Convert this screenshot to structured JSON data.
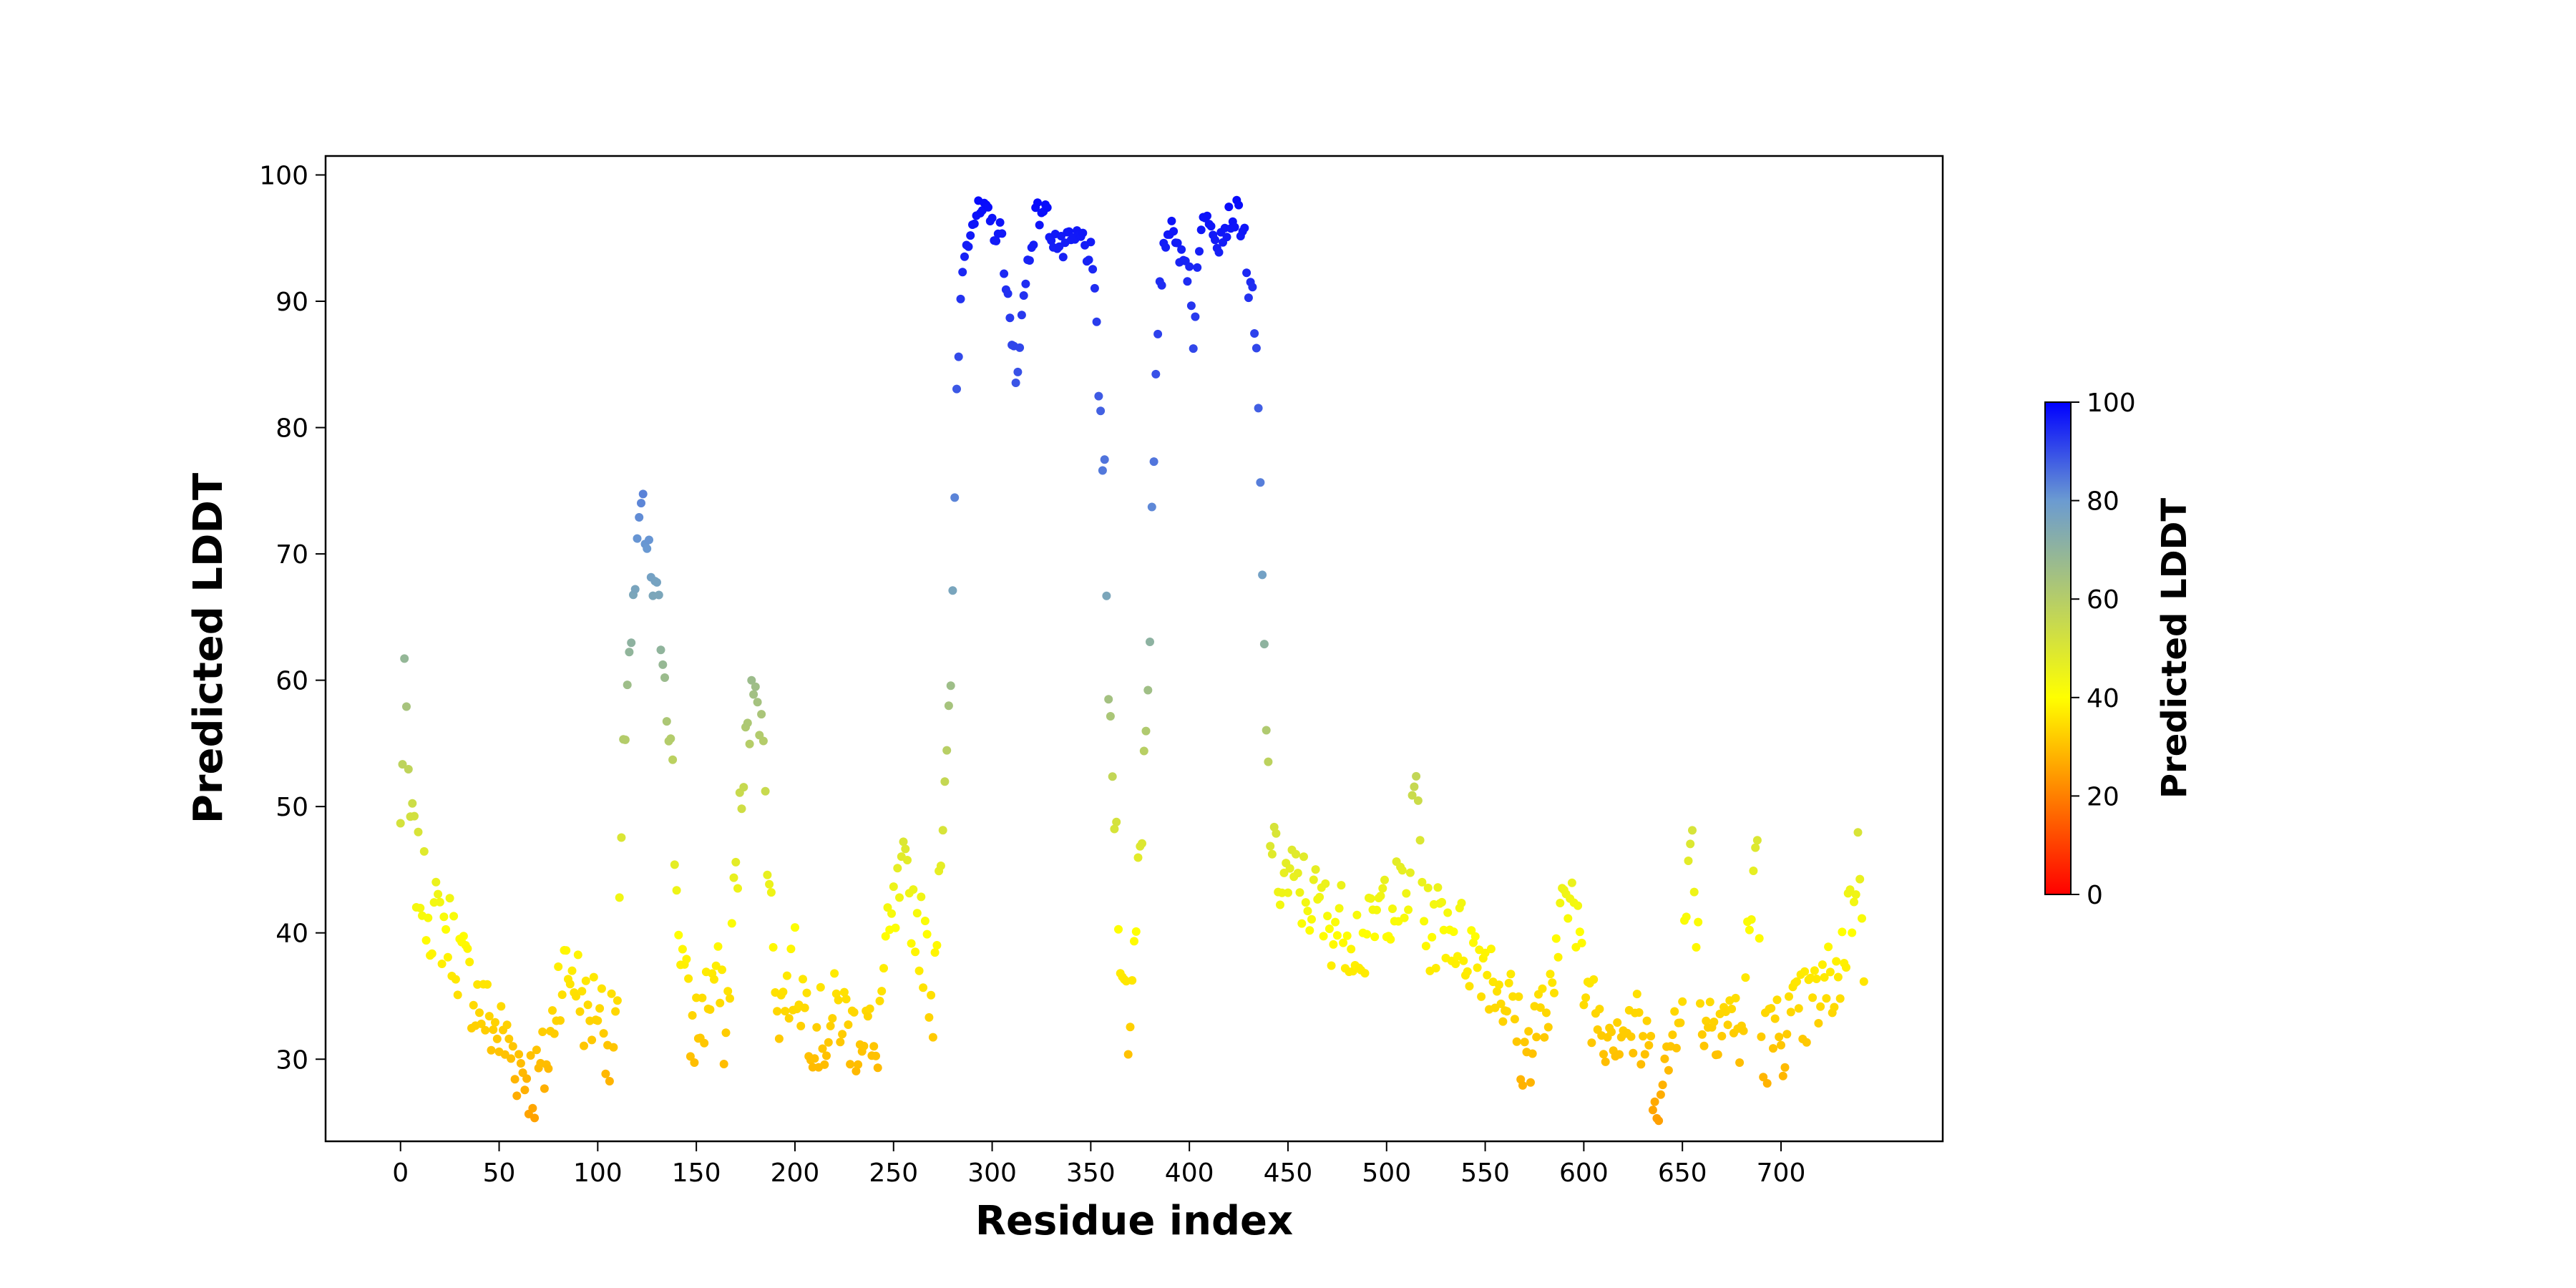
{
  "chart_data": {
    "type": "scatter",
    "xlabel": "Residue index",
    "ylabel": "Predicted LDDT",
    "xlim": [
      -38,
      782
    ],
    "ylim": [
      23.5,
      101.5
    ],
    "xticks": [
      "0",
      "50",
      "100",
      "150",
      "200",
      "250",
      "300",
      "350",
      "400",
      "450",
      "500",
      "550",
      "600",
      "650",
      "700"
    ],
    "yticks": [
      "30",
      "40",
      "50",
      "60",
      "70",
      "80",
      "90",
      "100"
    ],
    "colorbar": {
      "label": "Predicted LDDT",
      "range": [
        0,
        100
      ],
      "ticks": [
        "0",
        "20",
        "40",
        "60",
        "80",
        "100"
      ],
      "colormap": [
        "#ff0000",
        "#ffff00",
        "#6b9bd1",
        "#0000ff"
      ]
    },
    "grid": false,
    "legend": "none",
    "anchors": [
      [
        0,
        48
      ],
      [
        2,
        61.5
      ],
      [
        3,
        54.5
      ],
      [
        5,
        49
      ],
      [
        8,
        45
      ],
      [
        15,
        41.5
      ],
      [
        25,
        40
      ],
      [
        35,
        36
      ],
      [
        45,
        33
      ],
      [
        55,
        31
      ],
      [
        63,
        29
      ],
      [
        68,
        28
      ],
      [
        75,
        30
      ],
      [
        80,
        36.5
      ],
      [
        88,
        37
      ],
      [
        95,
        33
      ],
      [
        100,
        35
      ],
      [
        106,
        31
      ],
      [
        110,
        34
      ],
      [
        113,
        52
      ],
      [
        115,
        61
      ],
      [
        117,
        63.5
      ],
      [
        120,
        69
      ],
      [
        122,
        74
      ],
      [
        125,
        70
      ],
      [
        128,
        67.5
      ],
      [
        132,
        64
      ],
      [
        134,
        61
      ],
      [
        136,
        57
      ],
      [
        138,
        51.5
      ],
      [
        140,
        43
      ],
      [
        143,
        38
      ],
      [
        147,
        32
      ],
      [
        152,
        33
      ],
      [
        160,
        37
      ],
      [
        165,
        31.5
      ],
      [
        168,
        40
      ],
      [
        170,
        45
      ],
      [
        173,
        50
      ],
      [
        175,
        54
      ],
      [
        178,
        58
      ],
      [
        180,
        61.5
      ],
      [
        183,
        56
      ],
      [
        186,
        48
      ],
      [
        188,
        41
      ],
      [
        192,
        34
      ],
      [
        200,
        37
      ],
      [
        208,
        33
      ],
      [
        215,
        32
      ],
      [
        222,
        34
      ],
      [
        230,
        32
      ],
      [
        237,
        33
      ],
      [
        240,
        28.5
      ],
      [
        245,
        37
      ],
      [
        250,
        41
      ],
      [
        255,
        44
      ],
      [
        260,
        42
      ],
      [
        266,
        38.5
      ],
      [
        270,
        34.5
      ],
      [
        273,
        46
      ],
      [
        276,
        50
      ],
      [
        278,
        55
      ],
      [
        280,
        65.5
      ],
      [
        282,
        83
      ],
      [
        284,
        90
      ],
      [
        286,
        94.5
      ],
      [
        290,
        96.5
      ],
      [
        295,
        97
      ],
      [
        300,
        96
      ],
      [
        305,
        95
      ],
      [
        308,
        90
      ],
      [
        310,
        86
      ],
      [
        312,
        84
      ],
      [
        315,
        88.5
      ],
      [
        318,
        93
      ],
      [
        322,
        96.5
      ],
      [
        326,
        97.5
      ],
      [
        330,
        95.5
      ],
      [
        335,
        94
      ],
      [
        340,
        94.5
      ],
      [
        345,
        95
      ],
      [
        350,
        93.5
      ],
      [
        353,
        88
      ],
      [
        355,
        80.5
      ],
      [
        357,
        75
      ],
      [
        358,
        66
      ],
      [
        360,
        54
      ],
      [
        362,
        50.5
      ],
      [
        365,
        40
      ],
      [
        367,
        35
      ],
      [
        370,
        32
      ],
      [
        374,
        46
      ],
      [
        376,
        49.5
      ],
      [
        378,
        57
      ],
      [
        379,
        61
      ],
      [
        380,
        65
      ],
      [
        381,
        72
      ],
      [
        383,
        82.5
      ],
      [
        385,
        90.5
      ],
      [
        388,
        95
      ],
      [
        392,
        96.5
      ],
      [
        396,
        93
      ],
      [
        400,
        92.5
      ],
      [
        402,
        87
      ],
      [
        405,
        95
      ],
      [
        410,
        97
      ],
      [
        415,
        95
      ],
      [
        420,
        96.5
      ],
      [
        425,
        97
      ],
      [
        428,
        95
      ],
      [
        430,
        91
      ],
      [
        432,
        90
      ],
      [
        434,
        85
      ],
      [
        435,
        81
      ],
      [
        436,
        74
      ],
      [
        437,
        67.5
      ],
      [
        438,
        62
      ],
      [
        440,
        51.5
      ],
      [
        443,
        45
      ],
      [
        450,
        44
      ],
      [
        460,
        43
      ],
      [
        470,
        41
      ],
      [
        480,
        40.5
      ],
      [
        490,
        39
      ],
      [
        500,
        43
      ],
      [
        510,
        42
      ],
      [
        515,
        52
      ],
      [
        520,
        40
      ],
      [
        530,
        41
      ],
      [
        540,
        39
      ],
      [
        550,
        38
      ],
      [
        560,
        35
      ],
      [
        565,
        33.5
      ],
      [
        570,
        29.5
      ],
      [
        575,
        33
      ],
      [
        585,
        34
      ],
      [
        590,
        46.5
      ],
      [
        600,
        36
      ],
      [
        610,
        33
      ],
      [
        620,
        33
      ],
      [
        630,
        31.5
      ],
      [
        640,
        27
      ],
      [
        650,
        37
      ],
      [
        655,
        48
      ],
      [
        660,
        33
      ],
      [
        670,
        34
      ],
      [
        680,
        32
      ],
      [
        688,
        48
      ],
      [
        690,
        31
      ],
      [
        700,
        32
      ],
      [
        710,
        33.5
      ],
      [
        720,
        35
      ],
      [
        730,
        37
      ],
      [
        735,
        42
      ],
      [
        740,
        46
      ],
      [
        742,
        39
      ]
    ]
  }
}
